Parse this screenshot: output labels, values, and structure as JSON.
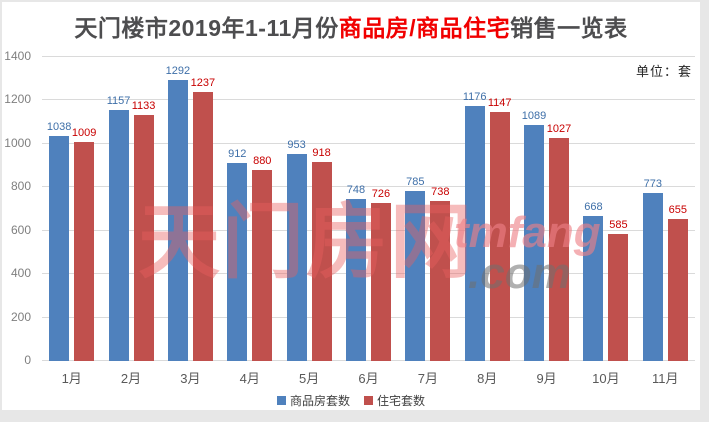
{
  "page": {
    "title_prefix": "天门楼市2019年1-11月份",
    "title_highlight": "商品房/商品住宅",
    "title_suffix": "销售一览表",
    "unit_label": "单位：套"
  },
  "watermark": {
    "cn": "天门房网",
    "domain_top": "tmfang",
    "domain_bottom": ".com"
  },
  "chart_data": {
    "type": "bar",
    "title": "天门楼市2019年1-11月份商品房/商品住宅销售一览表",
    "categories": [
      "1月",
      "2月",
      "3月",
      "4月",
      "5月",
      "6月",
      "7月",
      "8月",
      "9月",
      "10月",
      "11月"
    ],
    "series": [
      {
        "name": "商品房套数",
        "color": "#4f81bd",
        "label_color": "#3e6fa8",
        "values": [
          1038,
          1157,
          1292,
          912,
          953,
          748,
          785,
          1176,
          1089,
          668,
          773
        ]
      },
      {
        "name": "住宅套数",
        "color": "#c0504d",
        "label_color": "#c80000",
        "values": [
          1009,
          1133,
          1237,
          880,
          918,
          726,
          738,
          1147,
          1027,
          585,
          655
        ]
      }
    ],
    "ylim": [
      0,
      1400
    ],
    "yticks": [
      0,
      200,
      400,
      600,
      800,
      1000,
      1200,
      1400
    ],
    "grid": true,
    "legend_position": "bottom"
  },
  "colors": {
    "title_text": "#4d4d4f",
    "title_highlight": "#f10000",
    "bar_blue": "#4f81bd",
    "bar_red": "#c0504d",
    "label_blue": "#3e6fa8",
    "label_red": "#c80000",
    "gridline": "#dadada",
    "axis_text": "#7f7f7f"
  }
}
